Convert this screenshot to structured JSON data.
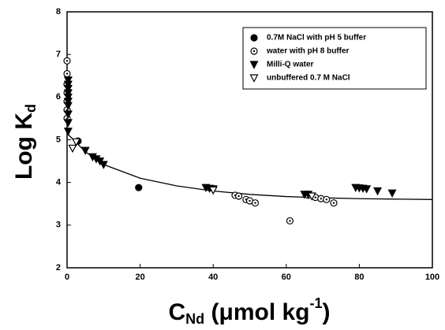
{
  "chart_data": {
    "type": "scatter",
    "xlabel": [
      "C",
      "Nd",
      " (μmol kg",
      "-1",
      ")"
    ],
    "ylabel": [
      "Log K",
      "d"
    ],
    "xlim": [
      0,
      100
    ],
    "xticks": [
      0,
      20,
      40,
      60,
      80,
      100
    ],
    "ylim": [
      2,
      8
    ],
    "yticks": [
      2,
      3,
      4,
      5,
      6,
      7,
      8
    ],
    "legend": "upper right",
    "series": [
      {
        "name": "0.7M NaCl with pH 5 buffer",
        "marker": "circle-filled",
        "color": "#000000",
        "x": [
          3,
          19.6
        ],
        "values": [
          4.97,
          3.88
        ]
      },
      {
        "name": "water with pH 8 buffer",
        "marker": "circle-dotted",
        "color": "#000000",
        "x": [
          0,
          0,
          0,
          0,
          0,
          0,
          0,
          46,
          47,
          49,
          50,
          51.5,
          61,
          66,
          68,
          69.5,
          71,
          73
        ],
        "values": [
          6.85,
          6.55,
          6.3,
          6.1,
          5.9,
          5.7,
          5.5,
          3.7,
          3.68,
          3.6,
          3.57,
          3.52,
          3.1,
          3.7,
          3.65,
          3.62,
          3.6,
          3.52
        ]
      },
      {
        "name": "Milli-Q water",
        "marker": "triangle-down-filled",
        "color": "#000000",
        "x": [
          0.3,
          0.3,
          0.3,
          0.3,
          0.3,
          0.3,
          0.3,
          0.3,
          0.3,
          0.3,
          5,
          7,
          8,
          9,
          10,
          38,
          39,
          40,
          65,
          66,
          79,
          80,
          81,
          82,
          85,
          89
        ],
        "values": [
          6.4,
          6.3,
          6.2,
          6.1,
          6.0,
          5.9,
          5.8,
          5.6,
          5.4,
          5.2,
          4.75,
          4.6,
          4.55,
          4.5,
          4.42,
          3.88,
          3.86,
          3.85,
          3.72,
          3.72,
          3.88,
          3.87,
          3.86,
          3.85,
          3.8,
          3.75
        ]
      },
      {
        "name": "unbuffered 0.7 M NaCl",
        "marker": "triangle-down-open",
        "color": "#000000",
        "x": [
          1.5,
          2.5,
          40,
          67
        ],
        "values": [
          4.8,
          4.95,
          3.82,
          3.68
        ]
      }
    ],
    "curve": {
      "color": "#000000",
      "x": [
        0,
        5,
        10,
        20,
        30,
        40,
        50,
        60,
        70,
        80,
        90,
        100
      ],
      "values": [
        5.15,
        4.72,
        4.42,
        4.1,
        3.92,
        3.8,
        3.72,
        3.67,
        3.64,
        3.62,
        3.61,
        3.6
      ]
    }
  }
}
